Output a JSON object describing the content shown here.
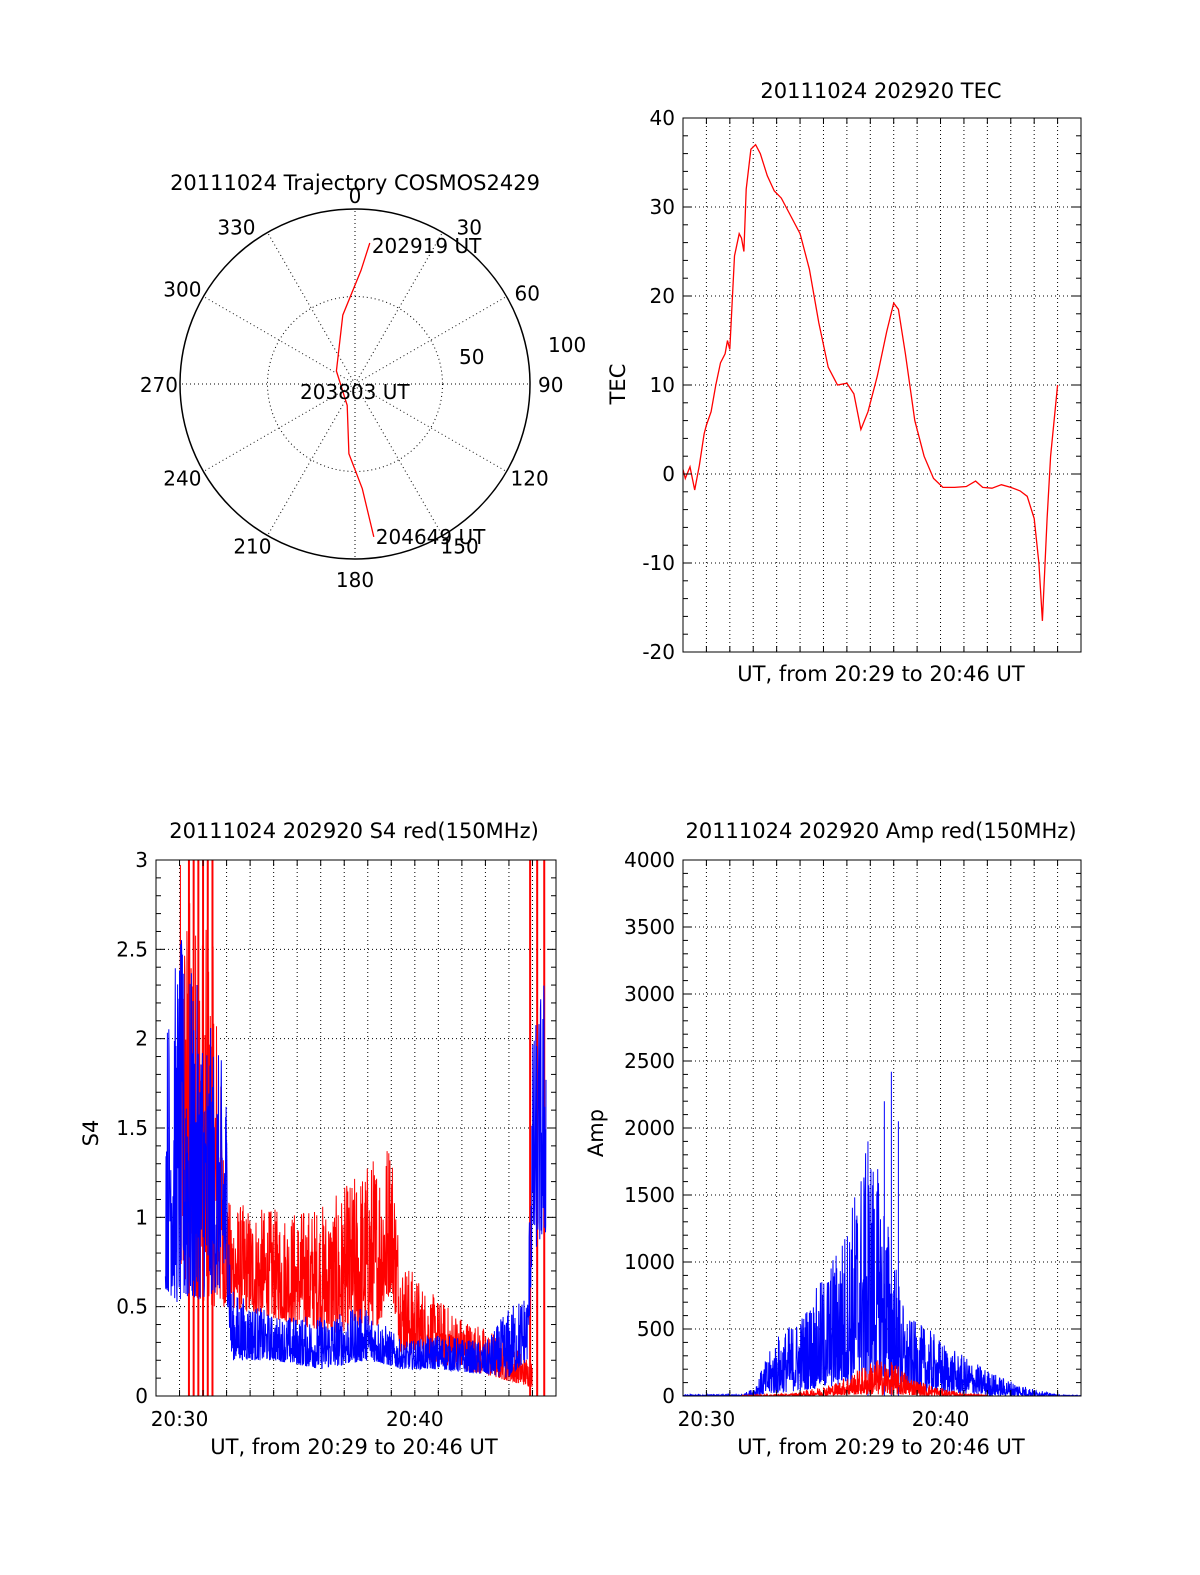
{
  "chart_data": [
    {
      "type": "polar-trajectory",
      "title": "20111024 Trajectory COSMOS2429",
      "azimuth_labels": [
        "0",
        "30",
        "60",
        "90",
        "120",
        "150",
        "180",
        "210",
        "240",
        "270",
        "300",
        "330"
      ],
      "radial_labels": [
        "50",
        "100"
      ],
      "rlim": [
        0,
        100
      ],
      "grid": true,
      "track": [
        {
          "azimuth": 6,
          "radius": 81
        },
        {
          "azimuth": 3,
          "radius": 65
        },
        {
          "azimuth": 350,
          "radius": 40
        },
        {
          "azimuth": 305,
          "radius": 13
        },
        {
          "azimuth": 200,
          "radius": 13
        },
        {
          "azimuth": 185,
          "radius": 40
        },
        {
          "azimuth": 176,
          "radius": 60
        },
        {
          "azimuth": 173,
          "radius": 88
        }
      ],
      "point_labels": [
        "202919 UT",
        "203803 UT",
        "204649 UT"
      ],
      "series_color": "#ff0000"
    },
    {
      "type": "line",
      "title": "20111024 202920 TEC",
      "xlabel": "UT, from 20:29 to 20:46 UT",
      "ylabel": "TEC",
      "xlim": [
        0,
        17
      ],
      "ylim": [
        -20,
        40
      ],
      "yticks": [
        "-20",
        "-10",
        "0",
        "10",
        "20",
        "30",
        "40"
      ],
      "grid": true,
      "series": [
        {
          "color": "#ff0000",
          "points": [
            [
              0.0,
              0.5
            ],
            [
              0.1,
              -0.5
            ],
            [
              0.3,
              0.8
            ],
            [
              0.5,
              -1.8
            ],
            [
              0.7,
              1.0
            ],
            [
              0.9,
              4.5
            ],
            [
              1.0,
              5.5
            ],
            [
              1.2,
              7.0
            ],
            [
              1.4,
              10.0
            ],
            [
              1.6,
              12.5
            ],
            [
              1.8,
              13.5
            ],
            [
              1.9,
              15.0
            ],
            [
              2.0,
              14.0
            ],
            [
              2.2,
              24.5
            ],
            [
              2.4,
              27.0
            ],
            [
              2.5,
              26.5
            ],
            [
              2.6,
              25.0
            ],
            [
              2.7,
              32.0
            ],
            [
              2.9,
              36.5
            ],
            [
              3.1,
              37.0
            ],
            [
              3.3,
              36.0
            ],
            [
              3.6,
              33.5
            ],
            [
              3.9,
              31.8
            ],
            [
              4.2,
              31.0
            ],
            [
              4.5,
              29.5
            ],
            [
              5.0,
              27.0
            ],
            [
              5.4,
              23.0
            ],
            [
              5.8,
              17.0
            ],
            [
              6.2,
              12.0
            ],
            [
              6.6,
              10.0
            ],
            [
              7.0,
              10.2
            ],
            [
              7.3,
              9.0
            ],
            [
              7.6,
              5.0
            ],
            [
              7.9,
              7.0
            ],
            [
              8.3,
              11.0
            ],
            [
              8.7,
              16.0
            ],
            [
              9.0,
              19.2
            ],
            [
              9.2,
              18.5
            ],
            [
              9.5,
              13.5
            ],
            [
              9.9,
              6.0
            ],
            [
              10.3,
              2.0
            ],
            [
              10.7,
              -0.5
            ],
            [
              11.1,
              -1.5
            ],
            [
              11.6,
              -1.5
            ],
            [
              12.1,
              -1.4
            ],
            [
              12.5,
              -0.8
            ],
            [
              12.8,
              -1.5
            ],
            [
              13.2,
              -1.6
            ],
            [
              13.6,
              -1.2
            ],
            [
              14.0,
              -1.5
            ],
            [
              14.4,
              -1.9
            ],
            [
              14.7,
              -2.5
            ],
            [
              15.0,
              -5.0
            ],
            [
              15.2,
              -10.0
            ],
            [
              15.35,
              -16.5
            ],
            [
              15.55,
              -5.0
            ],
            [
              15.7,
              2.0
            ],
            [
              16.0,
              10.0
            ]
          ]
        }
      ]
    },
    {
      "type": "line",
      "title": "20111024 202920 S4 red(150MHz)",
      "xlabel": "UT, from 20:29 to 20:46 UT",
      "ylabel": "S4",
      "xlim": [
        0,
        17
      ],
      "ylim": [
        0,
        3
      ],
      "yticks": [
        "0",
        "0.5",
        "1",
        "1.5",
        "2",
        "2.5",
        "3"
      ],
      "xticks": [
        {
          "value": 1.0,
          "label": "20:30"
        },
        {
          "value": 11.0,
          "label": "20:40"
        }
      ],
      "grid": true,
      "series": [
        {
          "color": "#ff0000",
          "envelope": [
            [
              1.0,
              0.6,
              3.0
            ],
            [
              2.5,
              0.5,
              2.5
            ],
            [
              3.0,
              0.5,
              1.1
            ],
            [
              4.5,
              0.45,
              1.05
            ],
            [
              6.0,
              0.4,
              1.05
            ],
            [
              7.5,
              0.35,
              1.1
            ],
            [
              9.5,
              0.4,
              1.4
            ],
            [
              10.0,
              0.6,
              1.5
            ],
            [
              10.4,
              0.25,
              0.8
            ],
            [
              11.5,
              0.2,
              0.6
            ],
            [
              13.0,
              0.15,
              0.45
            ],
            [
              14.5,
              0.1,
              0.35
            ],
            [
              16.0,
              0.05,
              0.2
            ]
          ],
          "spikes": [
            1.4,
            1.6,
            1.8,
            2.0,
            2.2,
            2.4,
            15.9,
            16.2,
            16.5
          ]
        },
        {
          "color": "#0000ff",
          "envelope": [
            [
              0.4,
              0.6,
              2.1
            ],
            [
              1.0,
              0.5,
              2.6
            ],
            [
              2.0,
              0.55,
              2.2
            ],
            [
              3.0,
              0.6,
              1.8
            ],
            [
              3.2,
              0.2,
              0.6
            ],
            [
              5.0,
              0.2,
              0.45
            ],
            [
              7.0,
              0.15,
              0.45
            ],
            [
              9.0,
              0.2,
              0.5
            ],
            [
              10.5,
              0.15,
              0.3
            ],
            [
              12.0,
              0.15,
              0.35
            ],
            [
              14.0,
              0.12,
              0.3
            ],
            [
              15.0,
              0.1,
              0.5
            ],
            [
              15.8,
              0.2,
              0.6
            ],
            [
              16.0,
              0.8,
              2.0
            ],
            [
              16.6,
              0.9,
              2.5
            ]
          ]
        }
      ]
    },
    {
      "type": "line",
      "title": "20111024 202920 Amp red(150MHz)",
      "xlabel": "UT, from 20:29 to 20:46 UT",
      "ylabel": "Amp",
      "xlim": [
        0,
        17
      ],
      "ylim": [
        0,
        4000
      ],
      "yticks": [
        "0",
        "500",
        "1000",
        "1500",
        "2000",
        "2500",
        "3000",
        "3500",
        "4000"
      ],
      "xticks": [
        {
          "value": 1.0,
          "label": "20:30"
        },
        {
          "value": 11.0,
          "label": "20:40"
        }
      ],
      "grid": true,
      "series": [
        {
          "color": "#0000ff",
          "envelope": [
            [
              0.0,
              0,
              10
            ],
            [
              2.5,
              0,
              10
            ],
            [
              3.0,
              0,
              60
            ],
            [
              4.0,
              20,
              450
            ],
            [
              5.0,
              40,
              600
            ],
            [
              6.0,
              60,
              900
            ],
            [
              7.0,
              80,
              1300
            ],
            [
              7.5,
              100,
              1700
            ],
            [
              8.0,
              120,
              1900
            ],
            [
              8.5,
              100,
              1600
            ],
            [
              9.5,
              50,
              600
            ],
            [
              10.5,
              30,
              500
            ],
            [
              11.5,
              20,
              350
            ],
            [
              12.5,
              10,
              250
            ],
            [
              13.5,
              0,
              150
            ],
            [
              15.0,
              0,
              50
            ],
            [
              16.0,
              0,
              10
            ],
            [
              17.0,
              0,
              5
            ]
          ],
          "spikes": [
            [
              8.9,
              2420
            ],
            [
              8.6,
              2200
            ],
            [
              9.2,
              2050
            ],
            [
              7.9,
              1900
            ]
          ]
        },
        {
          "color": "#ff0000",
          "envelope": [
            [
              2.5,
              0,
              5
            ],
            [
              4.5,
              0,
              15
            ],
            [
              5.5,
              0,
              50
            ],
            [
              6.5,
              5,
              100
            ],
            [
              7.5,
              10,
              200
            ],
            [
              8.2,
              10,
              280
            ],
            [
              9.0,
              10,
              250
            ],
            [
              10.0,
              5,
              120
            ],
            [
              11.0,
              0,
              60
            ],
            [
              12.0,
              0,
              20
            ],
            [
              13.0,
              0,
              5
            ]
          ]
        }
      ]
    }
  ]
}
